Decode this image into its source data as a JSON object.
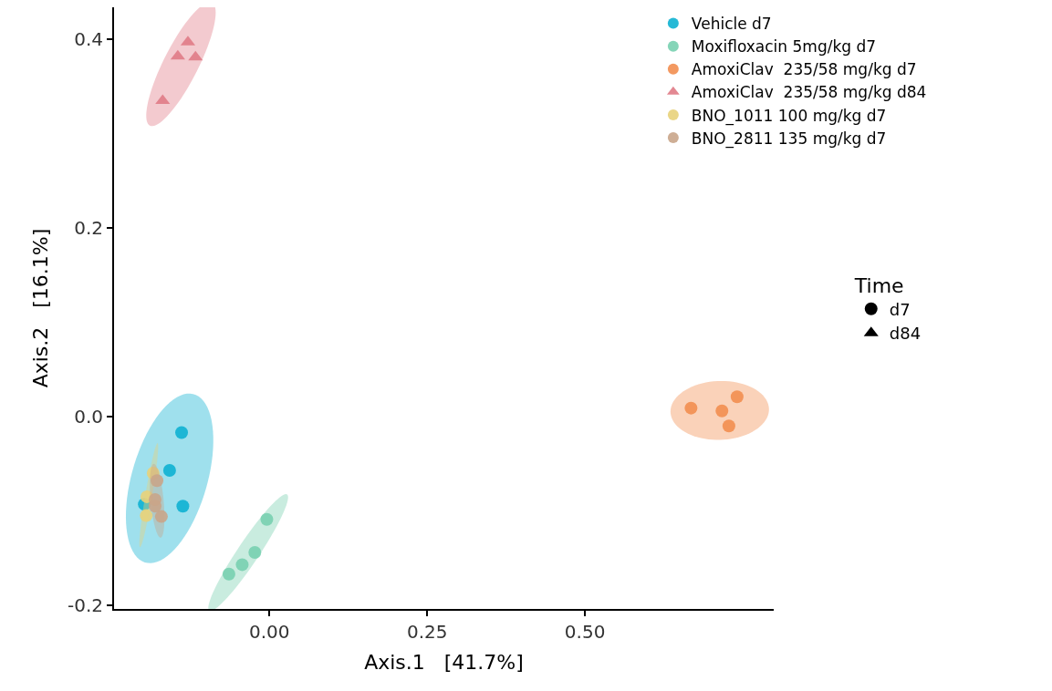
{
  "chart_data": {
    "type": "scatter",
    "xlabel": "Axis.1   [41.7%]",
    "ylabel": "Axis.2   [16.1%]",
    "legend_title": "Time",
    "annotations": [
      "d7",
      "d84"
    ],
    "xlim": [
      -0.246,
      0.799
    ],
    "ylim": [
      -0.204,
      0.434
    ],
    "xticks": [
      {
        "value": 0,
        "label": "0.00"
      },
      0.25,
      {
        "value": 0.5,
        "label": "0.50"
      }
    ],
    "yticks": [
      {
        "value": -0.2,
        "label": "-0.2"
      },
      {
        "value": 0,
        "label": "0.0"
      },
      0.2,
      0.4
    ],
    "legend": "top right",
    "series": [
      {
        "name": "Vehicle d7",
        "color": "#0eb1d2",
        "marker": "circle",
        "x": [
          -0.139,
          -0.158,
          -0.137,
          -0.198
        ],
        "values": [
          -0.017,
          -0.057,
          -0.095,
          -0.093
        ]
      },
      {
        "name": "Moxifloxacin 5mg/kg d7",
        "color": "#78d0b0",
        "marker": "circle",
        "x": [
          -0.064,
          -0.043,
          -0.023,
          -0.004
        ],
        "values": [
          -0.167,
          -0.157,
          -0.144,
          -0.109
        ]
      },
      {
        "name": "AmoxiClav  235/58 mg/kg d7",
        "color": "#f28e50",
        "marker": "circle",
        "x": [
          0.668,
          0.717,
          0.741,
          0.728
        ],
        "values": [
          0.009,
          0.006,
          0.021,
          -0.01
        ]
      },
      {
        "name": "AmoxiClav  235/58 mg/kg d84",
        "color": "#e07b86",
        "marker": "triangle",
        "x": [
          -0.169,
          -0.145,
          -0.129,
          -0.117
        ],
        "values": [
          0.335,
          0.382,
          0.397,
          0.381
        ]
      },
      {
        "name": "BNO_1011 100 mg/kg d7",
        "color": "#e8d27a",
        "marker": "circle",
        "x": [
          -0.195,
          -0.194,
          -0.184,
          null
        ],
        "values": [
          -0.105,
          -0.085,
          -0.06,
          null
        ]
      },
      {
        "name": "BNO_2811 135 mg/kg d7",
        "color": "#c9a58a",
        "marker": "circle",
        "x": [
          -0.178,
          -0.181,
          -0.171,
          -0.181
        ],
        "values": [
          -0.068,
          -0.088,
          -0.106,
          -0.095
        ]
      }
    ]
  }
}
